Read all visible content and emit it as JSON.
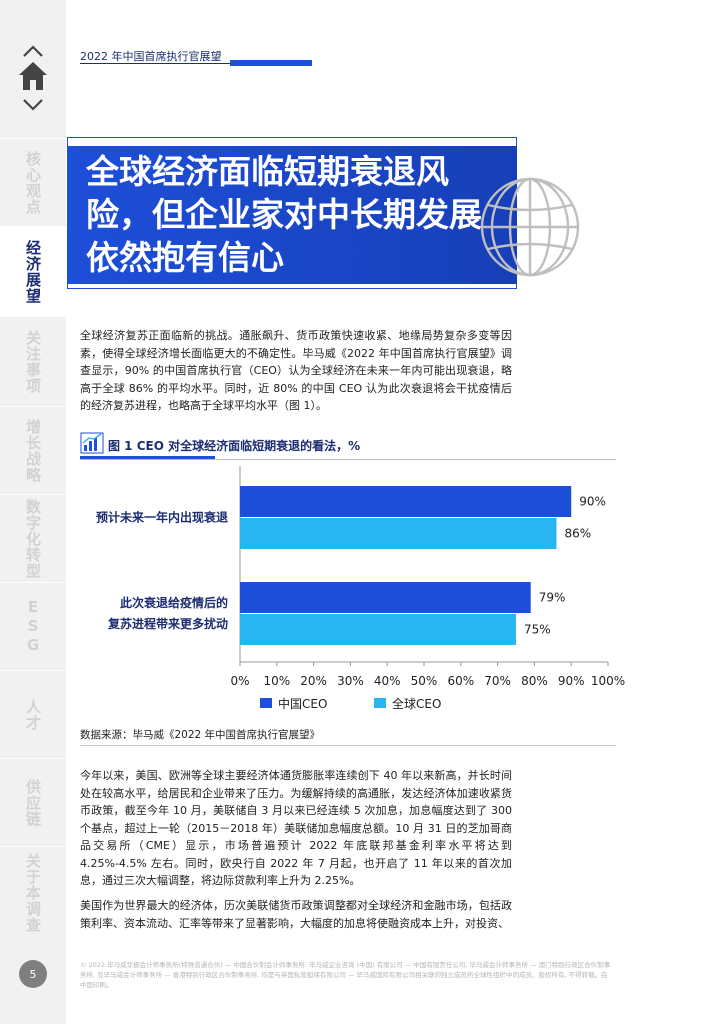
{
  "header": {
    "title": "2022 年中国首席执行官展望"
  },
  "sidebar": {
    "items": [
      {
        "label": "核心观点",
        "active": false
      },
      {
        "label": "经济展望",
        "active": true
      },
      {
        "label": "关注事项",
        "active": false
      },
      {
        "label": "增长战略",
        "active": false
      },
      {
        "label": "数字化转型",
        "active": false
      },
      {
        "label": "ESG",
        "active": false
      },
      {
        "label": "人才",
        "active": false
      },
      {
        "label": "供应链",
        "active": false
      },
      {
        "label": "关于本调查",
        "active": false
      }
    ],
    "page_number": "5"
  },
  "hero": {
    "title": "全球经济面临短期衰退风险，但企业家对中长期发展依然抱有信心"
  },
  "body": {
    "intro": "全球经济复苏正面临新的挑战。通胀飙升、货币政策快速收紧、地缘局势复杂多变等因素，使得全球经济增长面临更大的不确定性。毕马威《2022 年中国首席执行官展望》调查显示，90% 的中国首席执行官（CEO）认为全球经济在未来一年内可能出现衰退，略高于全球 86% 的平均水平。同时，近 80% 的中国 CEO 认为此次衰退将会干扰疫情后的经济复苏进程，也略高于全球平均水平（图 1）。",
    "para2": "今年以来，美国、欧洲等全球主要经济体通货膨胀率连续创下 40 年以来新高，并长时间处在较高水平，给居民和企业带来了压力。为缓解持续的高通胀，发达经济体加速收紧货币政策，截至今年 10 月，美联储自 3 月以来已经连续 5 次加息，加息幅度达到了 300 个基点，超过上一轮（2015－2018 年）美联储加息幅度总额。10 月 31 日的芝加哥商品交易所（CME）显示，市场普遍预计 2022 年底联邦基金利率水平将达到 4.25%-4.5% 左右。同时，欧央行自 2022 年 7 月起，也开启了 11 年以来的首次加息，通过三次大幅调整，将边际贷款利率上升为 2.25%。",
    "para3": "美国作为世界最大的经济体，历次美联储货币政策调整都对全球经济和金融市场，包括政策利率、资本流动、汇率等带来了显著影响，大幅度的加息将使融资成本上升，对投资、"
  },
  "figure": {
    "title": "图 1  CEO 对全球经济面临短期衰退的看法，%",
    "source": "数据来源：毕马威《2022 年中国首席执行官展望》"
  },
  "chart_data": {
    "type": "bar",
    "orientation": "horizontal",
    "categories": [
      [
        "预计未来一年内出现衰退"
      ],
      [
        "此次衰退给疫情后的",
        "复苏进程带来更多扰动"
      ]
    ],
    "series": [
      {
        "name": "中国CEO",
        "values": [
          90,
          79
        ],
        "color": "#1e4fd9"
      },
      {
        "name": "全球CEO",
        "values": [
          86,
          75
        ],
        "color": "#29b6f0"
      }
    ],
    "value_labels": [
      "90%",
      "86%",
      "79%",
      "75%"
    ],
    "x_ticks": [
      "0%",
      "10%",
      "20%",
      "30%",
      "40%",
      "50%",
      "60%",
      "70%",
      "80%",
      "90%",
      "100%"
    ],
    "xlim": [
      0,
      100
    ],
    "legend": "bottom",
    "grid": false
  },
  "footer": {
    "text": "© 2022 毕马威华振会计师事务所(特殊普通合伙) — 中国合伙制会计师事务所, 毕马威企业咨询 (中国) 有限公司 — 中国有限责任公司, 毕马威会计师事务所 — 澳门特别行政区合伙制事务所, 及毕马威会计师事务所 — 香港特别行政区合伙制事务所, 均是与英国私营担保有限公司 — 毕马威国际有限公司相关联的独立成员所全球性组织中的成员。版权所有, 不得转载。在中国印刷。"
  },
  "colors": {
    "accent": "#1e4fd9",
    "navy": "#1c2d72",
    "cyan": "#29b6f0"
  }
}
